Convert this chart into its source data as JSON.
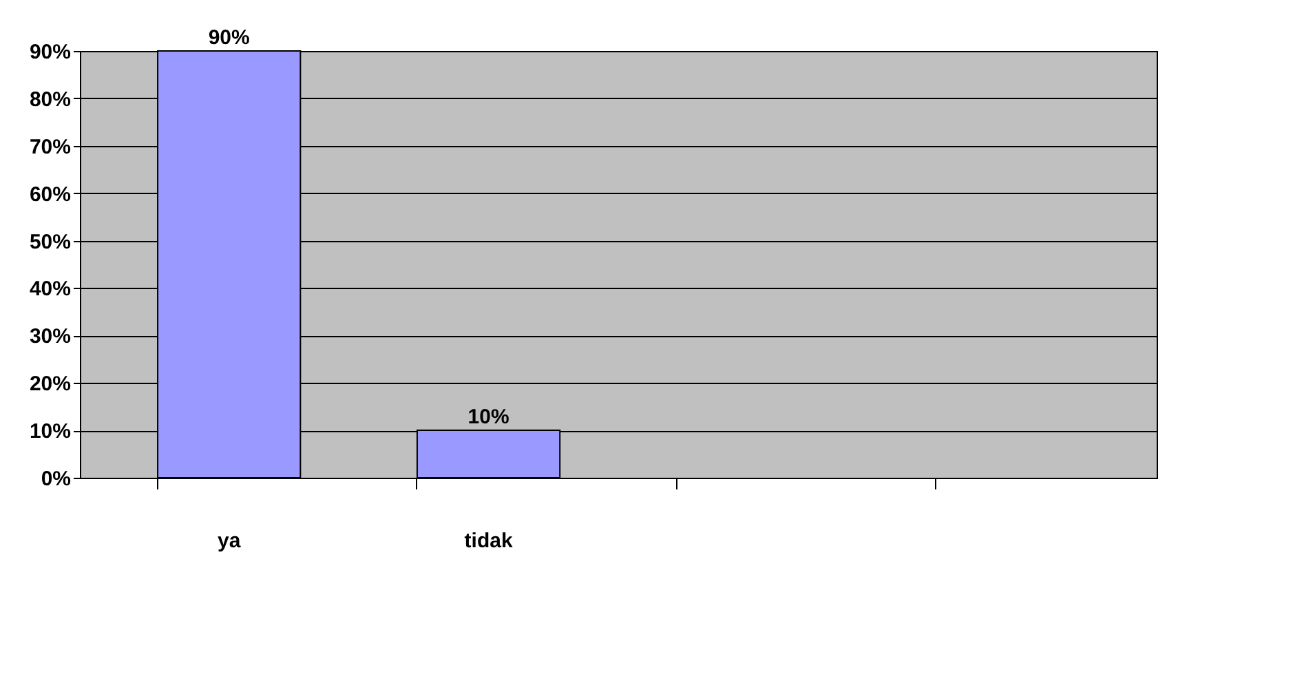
{
  "chart_data": {
    "type": "bar",
    "categories": [
      "ya",
      "tidak",
      null,
      null
    ],
    "values": [
      90,
      10,
      null,
      null
    ],
    "value_labels": [
      "90%",
      "10%",
      null,
      null
    ],
    "color": "#9999ff",
    "ylim": [
      0,
      90
    ],
    "yticks": [
      {
        "value": 0,
        "label": "0%"
      },
      {
        "value": 10,
        "label": "10%"
      },
      {
        "value": 20,
        "label": "20%"
      },
      {
        "value": 30,
        "label": "30%"
      },
      {
        "value": 40,
        "label": "40%"
      },
      {
        "value": 50,
        "label": "50%"
      },
      {
        "value": 60,
        "label": "60%"
      },
      {
        "value": 70,
        "label": "70%"
      },
      {
        "value": 80,
        "label": "80%"
      },
      {
        "value": 90,
        "label": "90%"
      }
    ],
    "grid": "y"
  }
}
